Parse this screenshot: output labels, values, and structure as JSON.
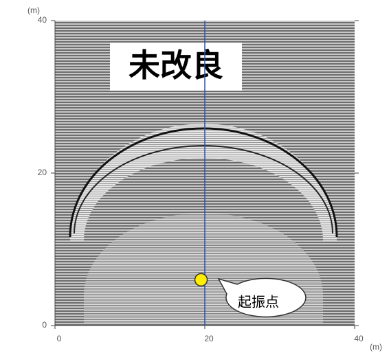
{
  "chart_data": {
    "type": "scatter",
    "annotation": "未改良",
    "x_unit": "(m)",
    "y_unit": "(m)",
    "xlim": [
      0,
      40
    ],
    "ylim": [
      0,
      40
    ],
    "xticks": [
      0,
      20,
      40
    ],
    "yticks": [
      0,
      20,
      40
    ],
    "vline": 20,
    "series": [
      {
        "name": "起振点",
        "color": "#ffee00",
        "x": [
          19.5
        ],
        "values": [
          6
        ]
      }
    ]
  }
}
